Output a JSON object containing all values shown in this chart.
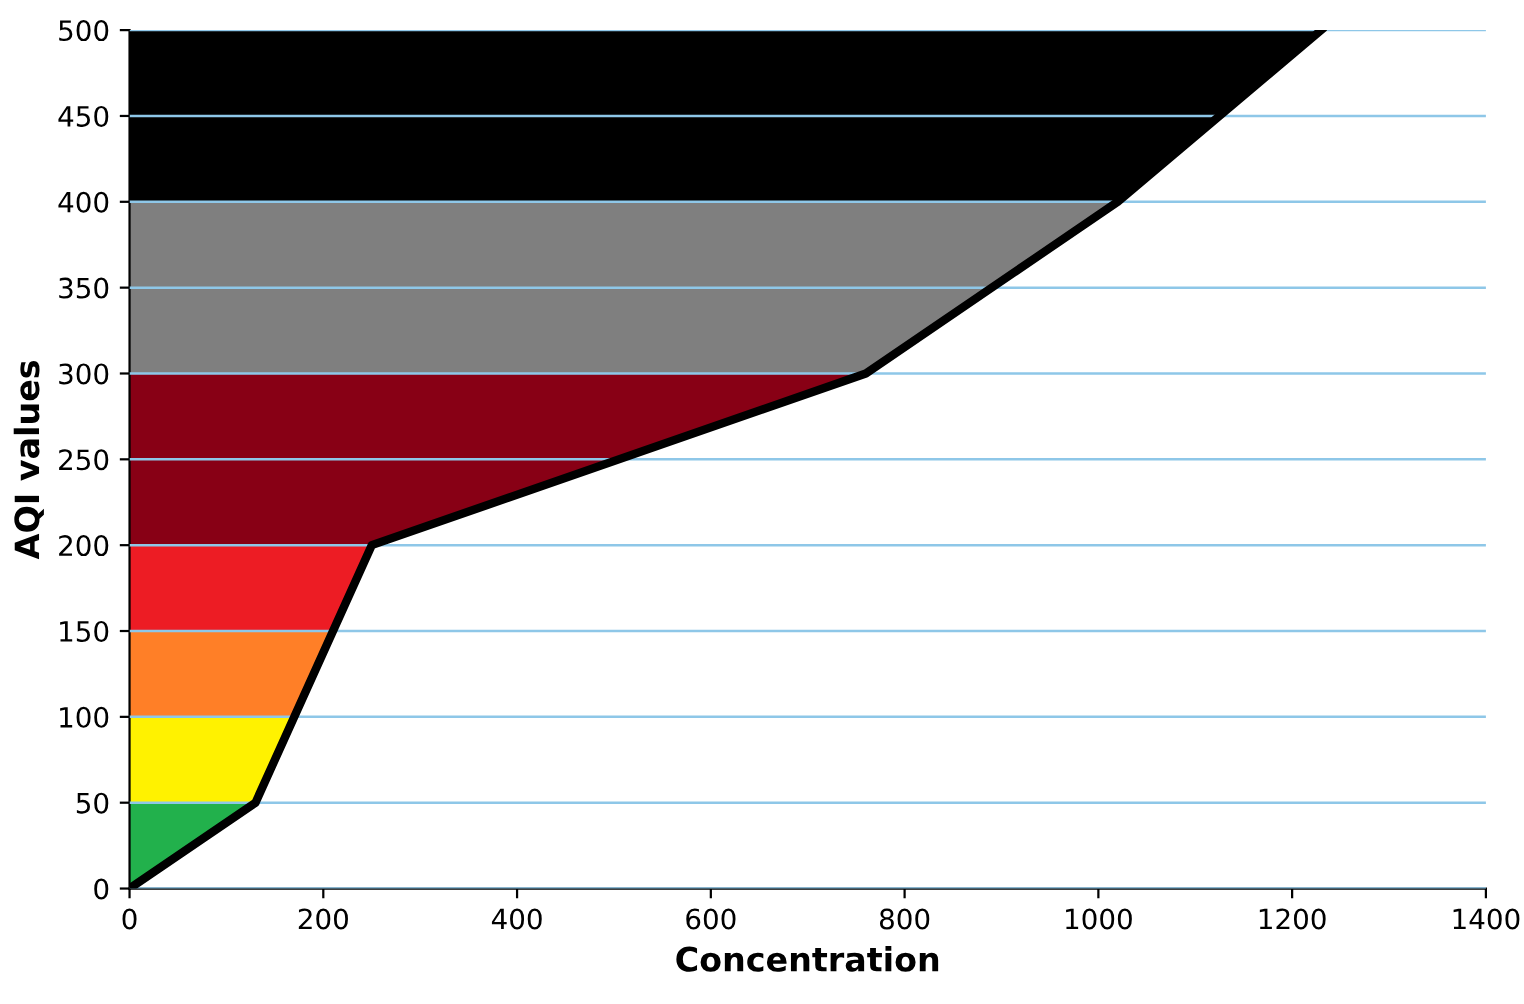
{
  "chart_data": {
    "type": "line",
    "xlabel": "Concentration",
    "ylabel": "AQI values",
    "series": [
      {
        "color": "#000000",
        "x": [
          0,
          130,
          250,
          760,
          1020,
          1230
        ],
        "values": [
          0,
          50,
          200,
          300,
          400,
          500
        ]
      }
    ],
    "bands": [
      {
        "axis": "y",
        "from": 0,
        "to": 50,
        "color": "#22b14c"
      },
      {
        "axis": "y",
        "from": 50,
        "to": 100,
        "color": "#fff200"
      },
      {
        "axis": "y",
        "from": 100,
        "to": 150,
        "color": "#ff7f27"
      },
      {
        "axis": "y",
        "from": 150,
        "to": 200,
        "color": "#ed1c24"
      },
      {
        "axis": "y",
        "from": 200,
        "to": 300,
        "color": "#880015"
      },
      {
        "axis": "y",
        "from": 300,
        "to": 400,
        "color": "#7f7f7f"
      },
      {
        "axis": "y",
        "from": 400,
        "to": 500,
        "color": "#000000"
      }
    ],
    "xlim": [
      0,
      1400
    ],
    "xticks": [
      0,
      200,
      400,
      600,
      800,
      1000,
      1200,
      1400
    ],
    "ylim": [
      0,
      500
    ],
    "yticks": [
      0,
      50,
      100,
      150,
      200,
      250,
      300,
      350,
      400,
      450,
      500
    ],
    "grid": "y",
    "marker": "none",
    "line_style": "solid"
  }
}
